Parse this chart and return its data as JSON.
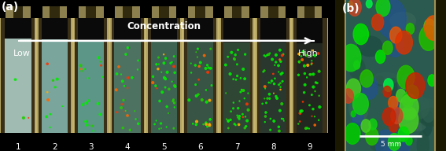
{
  "fig_width": 5.67,
  "fig_height": 1.92,
  "dpi": 100,
  "background_color": "#000000",
  "panel_a": {
    "label": "(a)",
    "arrow_text": "Concentration",
    "arrow_label_left": "Low",
    "arrow_label_right": "High",
    "num_vials": 9,
    "vial_numbers": [
      "1",
      "2",
      "3",
      "4",
      "5",
      "6",
      "7",
      "8",
      "9"
    ],
    "liquid_colors": [
      "#a8c8c0",
      "#80b0a8",
      "#60a090",
      "#507868",
      "#406858",
      "#385848",
      "#304838",
      "#283830",
      "#202820"
    ],
    "particle_counts": [
      3,
      10,
      18,
      25,
      40,
      35,
      48,
      55,
      50
    ]
  },
  "panel_b": {
    "label": "(b)",
    "scale_bar_text": "5 mm",
    "bg_color": "#285848",
    "scale_bar_color": "#ffffff"
  }
}
